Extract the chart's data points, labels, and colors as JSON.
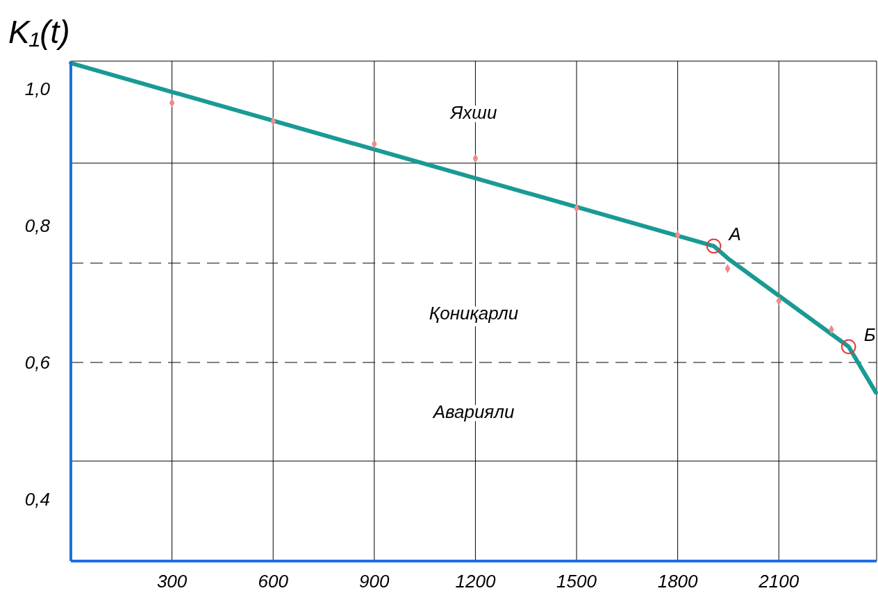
{
  "chart_data": {
    "type": "line",
    "ylabel": "K₁(t)",
    "xlim": [
      0,
      2390
    ],
    "xticks": [
      300,
      600,
      900,
      1200,
      1500,
      1800,
      2100
    ],
    "ylim": [
      0.31,
      1.04
    ],
    "yticks": [
      {
        "value": 1.0,
        "label": "1,0"
      },
      {
        "value": 0.8,
        "label": "0,8"
      },
      {
        "value": 0.6,
        "label": "0,6"
      },
      {
        "value": 0.4,
        "label": "0,4"
      }
    ],
    "grid": "x",
    "series": [
      {
        "color": "#1a9a94",
        "marker": "none",
        "x": [
          0,
          1907,
          1951,
          2307,
          2388
        ],
        "values": [
          1.037,
          0.77,
          0.751,
          0.623,
          0.556
        ]
      },
      {
        "type": "scatter",
        "color": "#f08a8a",
        "marker": "diamond",
        "x": [
          300,
          600,
          900,
          1200,
          1500,
          1800,
          1948,
          2100,
          2256
        ],
        "values": [
          0.979,
          0.952,
          0.919,
          0.898,
          0.825,
          0.786,
          0.737,
          0.69,
          0.648
        ]
      },
      {
        "type": "scatter",
        "color": "#e03a3a",
        "marker": "circle",
        "x": [
          1907,
          2307
        ],
        "values": [
          0.77,
          0.623
        ]
      }
    ],
    "ref_lines": [
      {
        "axis": "y",
        "value": 0.891,
        "color": "#000000",
        "line_style": "solid"
      },
      {
        "axis": "y",
        "value": 0.745,
        "color": "#000000",
        "line_style": "dashed"
      },
      {
        "axis": "y",
        "value": 0.6,
        "color": "#000000",
        "line_style": "dashed"
      },
      {
        "axis": "y",
        "value": 0.456,
        "color": "#000000",
        "line_style": "solid"
      }
    ],
    "annotations": [
      "Яхши",
      "Қониқарли",
      "Аварияли",
      {
        "text": "A",
        "x": 1907,
        "y": 0.77
      },
      {
        "text": "Б",
        "x": 2307,
        "y": 0.623
      }
    ]
  }
}
